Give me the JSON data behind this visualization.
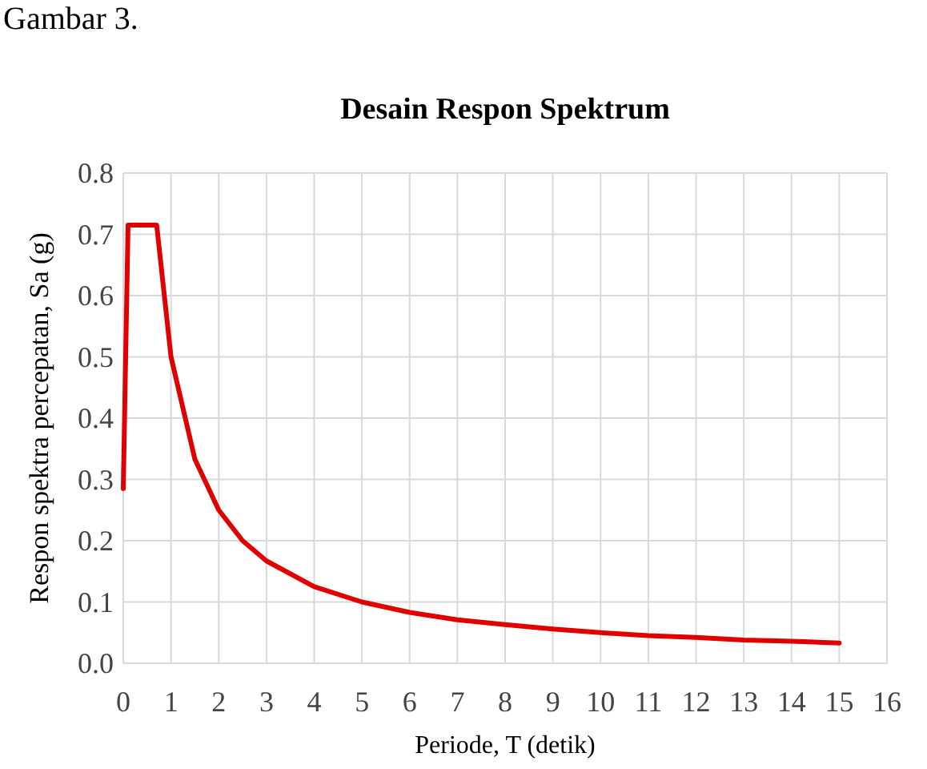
{
  "chart_data": {
    "type": "line",
    "title": "Desain Respon Spektrum",
    "xlabel": "Periode, T (detik)",
    "ylabel": "Respon spektra percepatan, Sa (g)",
    "annotations": [
      "Gambar 3."
    ],
    "x": [
      0,
      0.1,
      0.7,
      1,
      1.5,
      2,
      2.5,
      3,
      4,
      5,
      6,
      7,
      8,
      9,
      10,
      11,
      12,
      13,
      14,
      15
    ],
    "series": [
      {
        "color": "#e00000",
        "values": [
          0.285,
          0.715,
          0.715,
          0.5,
          0.333,
          0.25,
          0.2,
          0.167,
          0.125,
          0.1,
          0.083,
          0.071,
          0.063,
          0.056,
          0.05,
          0.045,
          0.042,
          0.038,
          0.036,
          0.033
        ]
      }
    ],
    "xlim": [
      0,
      16
    ],
    "ylim": [
      0,
      0.8
    ],
    "xticks": [
      0,
      1,
      2,
      3,
      4,
      5,
      6,
      7,
      8,
      9,
      10,
      11,
      12,
      13,
      14,
      15,
      16
    ],
    "yticks": [
      {
        "value": 0,
        "label": "0.0"
      },
      0.1,
      0.2,
      0.3,
      0.4,
      0.5,
      0.6,
      0.7,
      0.8
    ],
    "grid": true,
    "marker": "none",
    "line_style": "solid"
  }
}
